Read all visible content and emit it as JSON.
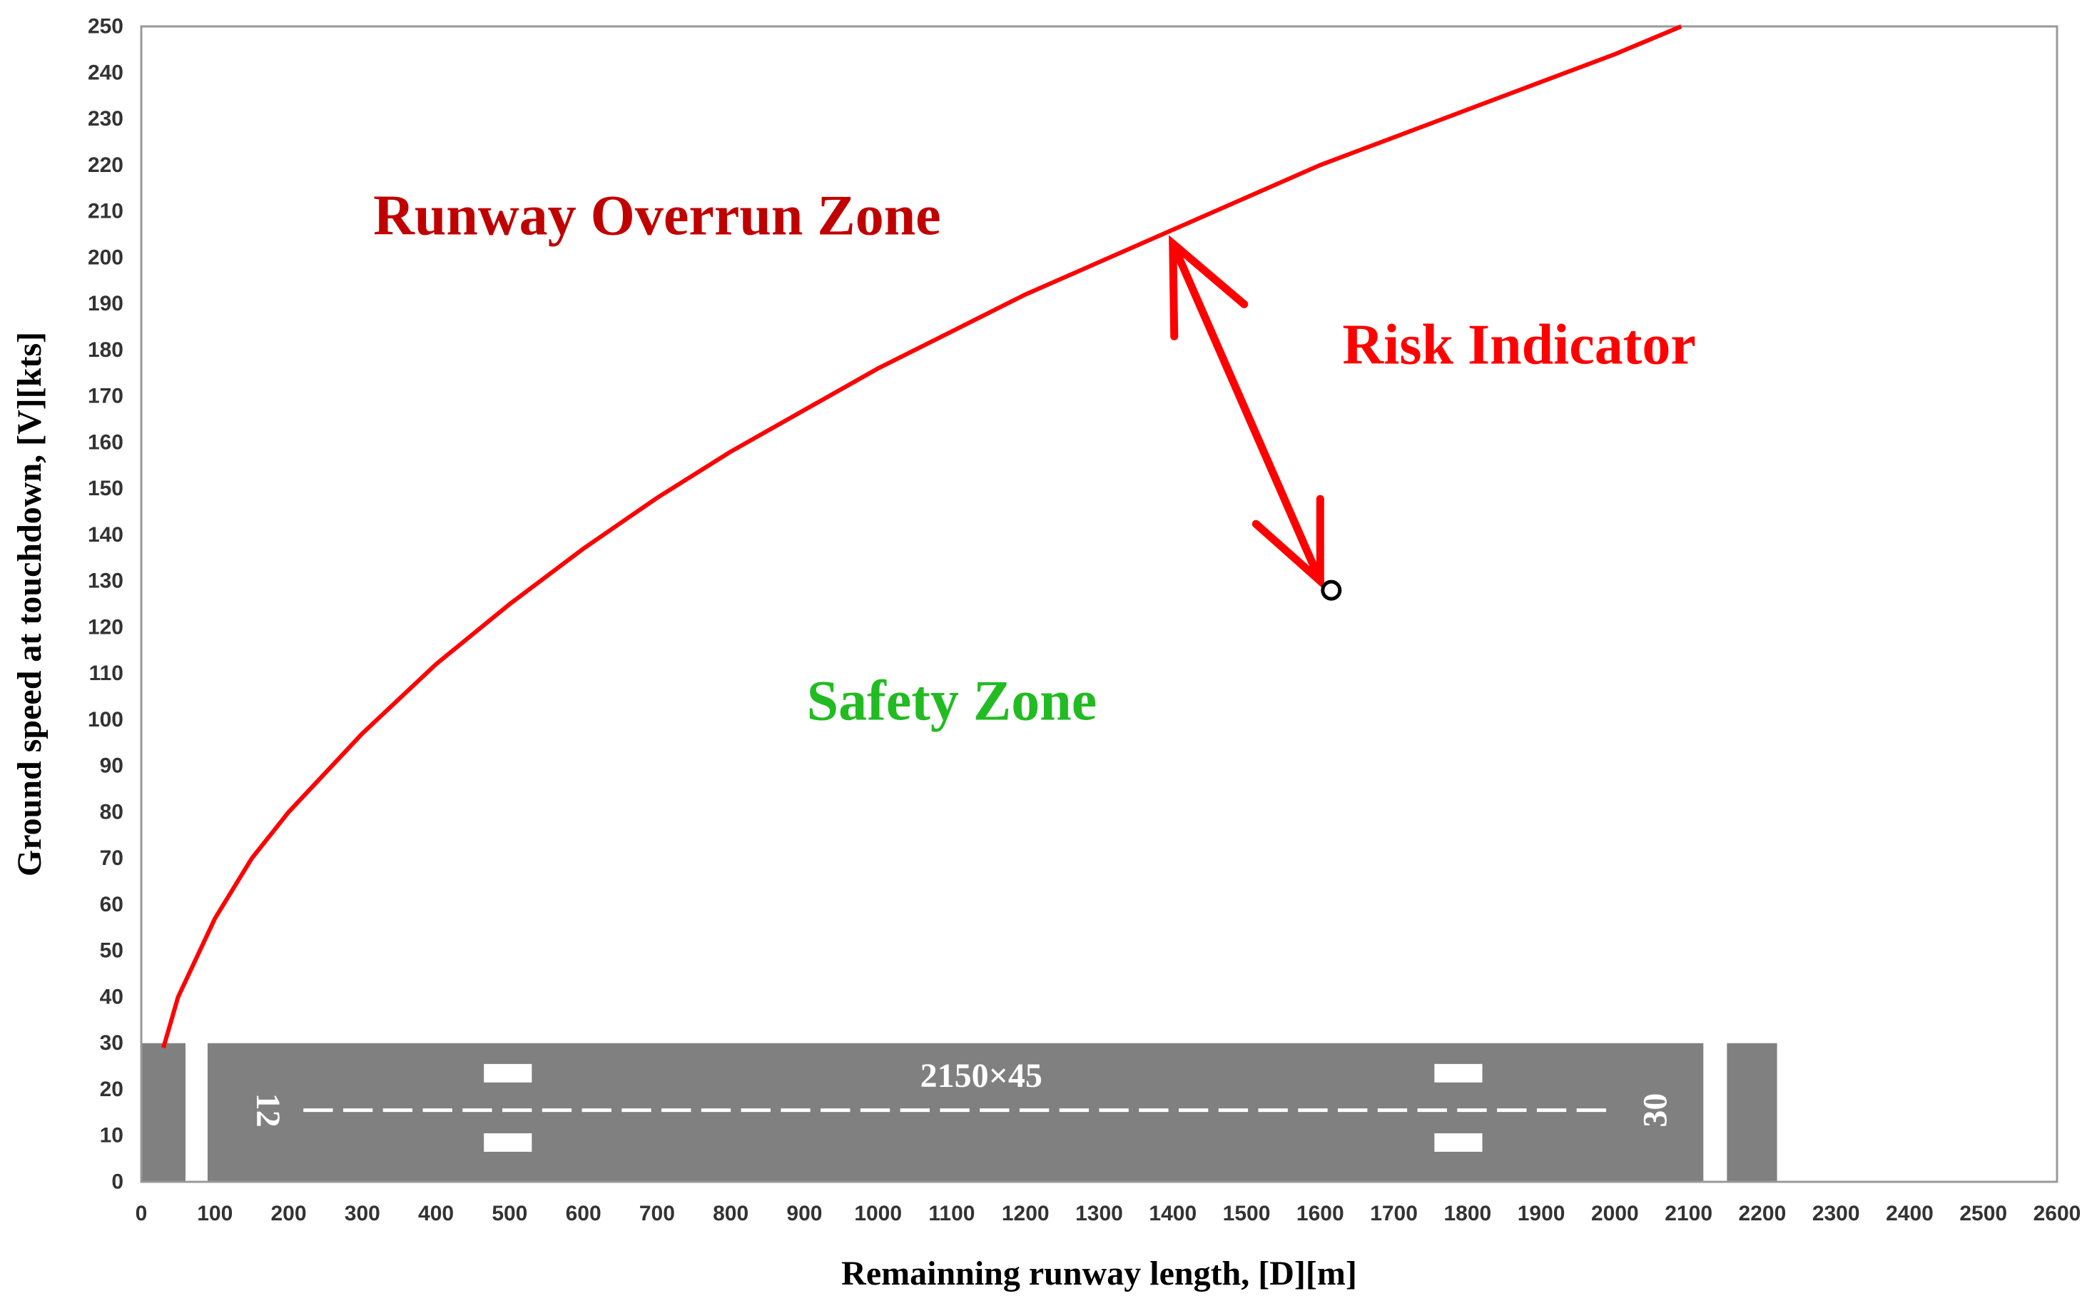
{
  "chart_data": {
    "type": "line",
    "xlabel": "Remainning runway length, [D][m]",
    "ylabel": "Ground speed at touchdown, [V][kts]",
    "xlim": [
      0,
      2600
    ],
    "ylim": [
      0,
      250
    ],
    "x_ticks": [
      0,
      100,
      200,
      300,
      400,
      500,
      600,
      700,
      800,
      900,
      1000,
      1100,
      1200,
      1300,
      1400,
      1500,
      1600,
      1700,
      1800,
      1900,
      2000,
      2100,
      2200,
      2300,
      2400,
      2500,
      2600
    ],
    "y_ticks": [
      0,
      10,
      20,
      30,
      40,
      50,
      60,
      70,
      80,
      90,
      100,
      110,
      120,
      130,
      140,
      150,
      160,
      170,
      180,
      190,
      200,
      210,
      220,
      230,
      240,
      250
    ],
    "grid": false,
    "series": [
      {
        "color": "#ff0000",
        "x": [
          30,
          50,
          100,
          150,
          200,
          300,
          400,
          500,
          600,
          700,
          800,
          900,
          1000,
          1100,
          1200,
          1300,
          1400,
          1500,
          1600,
          1700,
          1800,
          1900,
          2000,
          2090
        ],
        "y": [
          29,
          40,
          57,
          70,
          80,
          97,
          112,
          125,
          137,
          148,
          158,
          167,
          176,
          184,
          192,
          199,
          206,
          213,
          220,
          226,
          232,
          238,
          244,
          250
        ]
      }
    ],
    "point": {
      "x": 1615,
      "y": 128
    },
    "risk_arrow": {
      "from": {
        "x": 1400,
        "y": 203
      },
      "to": {
        "x": 1600,
        "y": 130
      }
    },
    "annotations": [
      {
        "text": "Runway Overrun Zone",
        "x": 700,
        "y": 205,
        "color": "#c00000"
      },
      {
        "text": "Risk Indicator",
        "x": 1870,
        "y": 177,
        "color": "#ff0000"
      },
      {
        "text": "Safety Zone",
        "x": 1100,
        "y": 100,
        "color": "#22bb22"
      }
    ],
    "runway": {
      "label": "2150×45",
      "threshold_left": "12",
      "threshold_right": "30",
      "color": "#808080"
    }
  }
}
